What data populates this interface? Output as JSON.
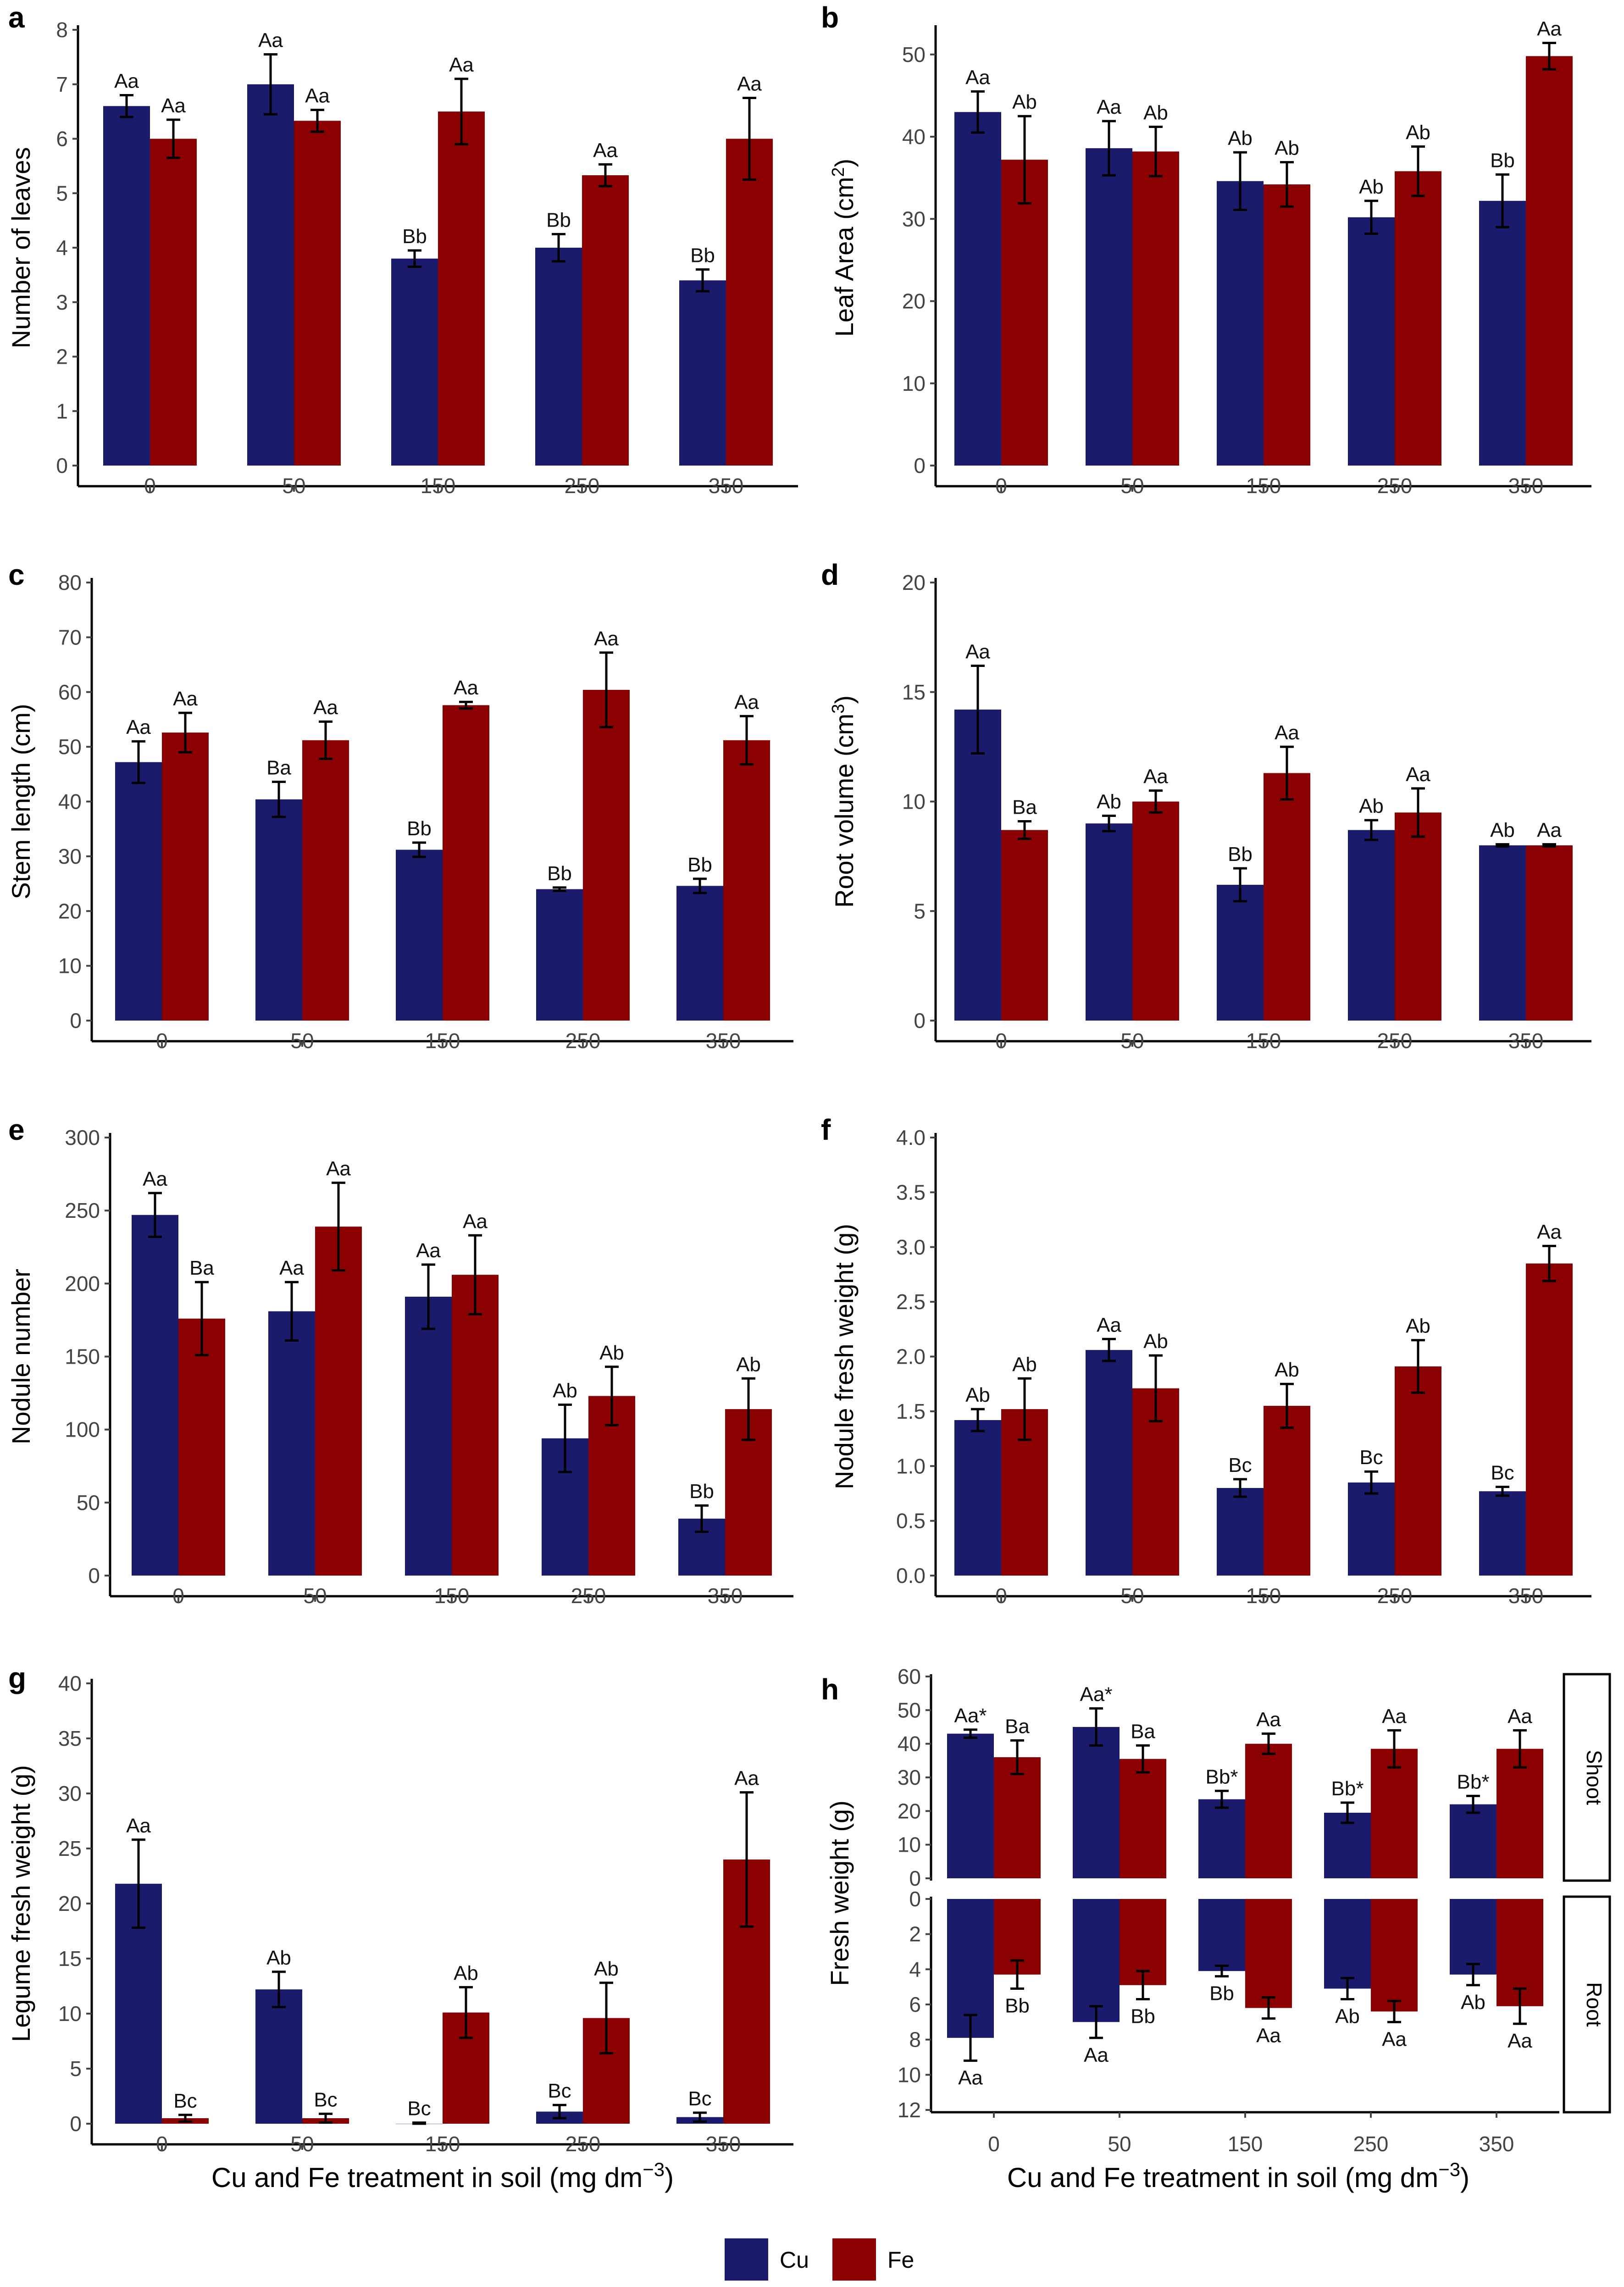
{
  "colors": {
    "Cu": "#1b1b6e",
    "Fe": "#8b0000"
  },
  "legend": {
    "items": [
      {
        "label": "Cu",
        "color": "#1b1b6e"
      },
      {
        "label": "Fe",
        "color": "#8b0000"
      }
    ]
  },
  "xlabel": {
    "text": "Cu and Fe treatment in soil (mg dm",
    "sup": "−3",
    "close": ")"
  },
  "chart_data": [
    {
      "panel": "a",
      "type": "bar",
      "ylabel": "Number of leaves",
      "ylabel_sup": "",
      "ylabel_close": "",
      "categories": [
        "0",
        "50",
        "150",
        "250",
        "350"
      ],
      "ylim": [
        0,
        8
      ],
      "yticks": [
        "0",
        "1",
        "2",
        "3",
        "4",
        "5",
        "6",
        "7",
        "8"
      ],
      "series": [
        {
          "name": "Cu",
          "values": [
            6.6,
            7.0,
            3.8,
            4.0,
            3.4
          ],
          "err": [
            0.2,
            0.55,
            0.15,
            0.25,
            0.2
          ],
          "labels": [
            "Aa",
            "Aa",
            "Bb",
            "Bb",
            "Bb"
          ]
        },
        {
          "name": "Fe",
          "values": [
            6.0,
            6.33,
            6.5,
            5.33,
            6.0
          ],
          "err": [
            0.35,
            0.2,
            0.6,
            0.2,
            0.75
          ],
          "labels": [
            "Aa",
            "Aa",
            "Aa",
            "Aa",
            "Aa"
          ]
        }
      ]
    },
    {
      "panel": "b",
      "type": "bar",
      "ylabel": "Leaf Area (cm",
      "ylabel_sup": "2",
      "ylabel_close": ")",
      "categories": [
        "0",
        "50",
        "150",
        "250",
        "350"
      ],
      "ylim": [
        0,
        53
      ],
      "yticks": [
        "0",
        "10",
        "20",
        "30",
        "40",
        "50"
      ],
      "series": [
        {
          "name": "Cu",
          "values": [
            43.0,
            38.6,
            34.6,
            30.2,
            32.2
          ],
          "err": [
            2.5,
            3.3,
            3.5,
            2.0,
            3.2
          ],
          "labels": [
            "Aa",
            "Aa",
            "Ab",
            "Ab",
            "Bb"
          ]
        },
        {
          "name": "Fe",
          "values": [
            37.2,
            38.2,
            34.2,
            35.8,
            49.8
          ],
          "err": [
            5.3,
            3.0,
            2.7,
            3.0,
            1.6
          ],
          "labels": [
            "Ab",
            "Ab",
            "Ab",
            "Ab",
            "Aa"
          ]
        }
      ]
    },
    {
      "panel": "c",
      "type": "bar",
      "ylabel": "Stem length (cm)",
      "ylabel_sup": "",
      "ylabel_close": "",
      "categories": [
        "0",
        "50",
        "150",
        "250",
        "350"
      ],
      "ylim": [
        0,
        80
      ],
      "yticks": [
        "0",
        "10",
        "20",
        "30",
        "40",
        "50",
        "60",
        "70",
        "80"
      ],
      "series": [
        {
          "name": "Cu",
          "values": [
            47.2,
            40.4,
            31.2,
            24.0,
            24.6
          ],
          "err": [
            3.8,
            3.2,
            1.3,
            0.3,
            1.3
          ],
          "labels": [
            "Aa",
            "Ba",
            "Bb",
            "Bb",
            "Bb"
          ]
        },
        {
          "name": "Fe",
          "values": [
            52.6,
            51.2,
            57.6,
            60.4,
            51.2
          ],
          "err": [
            3.6,
            3.4,
            0.6,
            6.8,
            4.4
          ],
          "labels": [
            "Aa",
            "Aa",
            "Aa",
            "Aa",
            "Aa"
          ]
        }
      ]
    },
    {
      "panel": "d",
      "type": "bar",
      "ylabel": "Root volume (cm",
      "ylabel_sup": "3",
      "ylabel_close": ")",
      "categories": [
        "0",
        "50",
        "150",
        "250",
        "350"
      ],
      "ylim": [
        0,
        20
      ],
      "yticks": [
        "0",
        "5",
        "10",
        "15",
        "20"
      ],
      "series": [
        {
          "name": "Cu",
          "values": [
            14.2,
            9.0,
            6.2,
            8.7,
            8.0
          ],
          "err": [
            2.0,
            0.35,
            0.75,
            0.45,
            0.05
          ],
          "labels": [
            "Aa",
            "Ab",
            "Bb",
            "Ab",
            "Ab"
          ]
        },
        {
          "name": "Fe",
          "values": [
            8.7,
            10.0,
            11.3,
            9.5,
            8.0
          ],
          "err": [
            0.4,
            0.5,
            1.2,
            1.1,
            0.05
          ],
          "labels": [
            "Ba",
            "Aa",
            "Aa",
            "Aa",
            "Aa"
          ]
        }
      ]
    },
    {
      "panel": "e",
      "type": "bar",
      "ylabel": "Nodule number",
      "ylabel_sup": "",
      "ylabel_close": "",
      "categories": [
        "0",
        "50",
        "150",
        "250",
        "350"
      ],
      "ylim": [
        0,
        300
      ],
      "yticks": [
        "0",
        "50",
        "100",
        "150",
        "200",
        "250",
        "300"
      ],
      "series": [
        {
          "name": "Cu",
          "values": [
            247,
            181,
            191,
            94,
            39
          ],
          "err": [
            15,
            20,
            22,
            23,
            9
          ],
          "labels": [
            "Aa",
            "Aa",
            "Aa",
            "Ab",
            "Bb"
          ]
        },
        {
          "name": "Fe",
          "values": [
            176,
            239,
            206,
            123,
            114
          ],
          "err": [
            25,
            30,
            27,
            20,
            21
          ],
          "labels": [
            "Ba",
            "Aa",
            "Aa",
            "Ab",
            "Ab"
          ]
        }
      ]
    },
    {
      "panel": "f",
      "type": "bar",
      "ylabel": "Nodule fresh weight (g)",
      "ylabel_sup": "",
      "ylabel_close": "",
      "categories": [
        "0",
        "50",
        "150",
        "250",
        "350"
      ],
      "ylim": [
        0,
        4
      ],
      "yticks": [
        "0.0",
        "0.5",
        "1.0",
        "1.5",
        "2.0",
        "2.5",
        "3.0",
        "3.5",
        "4.0"
      ],
      "series": [
        {
          "name": "Cu",
          "values": [
            1.42,
            2.06,
            0.8,
            0.85,
            0.77
          ],
          "err": [
            0.1,
            0.1,
            0.08,
            0.1,
            0.04
          ],
          "labels": [
            "Ab",
            "Aa",
            "Bc",
            "Bc",
            "Bc"
          ]
        },
        {
          "name": "Fe",
          "values": [
            1.52,
            1.71,
            1.55,
            1.91,
            2.85
          ],
          "err": [
            0.28,
            0.3,
            0.2,
            0.24,
            0.16
          ],
          "labels": [
            "Ab",
            "Ab",
            "Ab",
            "Ab",
            "Aa"
          ]
        }
      ]
    },
    {
      "panel": "g",
      "type": "bar",
      "ylabel": "Legume fresh weight (g)",
      "ylabel_sup": "",
      "ylabel_close": "",
      "categories": [
        "0",
        "50",
        "150",
        "250",
        "350"
      ],
      "ylim": [
        0,
        40
      ],
      "yticks": [
        "0",
        "5",
        "10",
        "15",
        "20",
        "25",
        "30",
        "35",
        "40"
      ],
      "series": [
        {
          "name": "Cu",
          "values": [
            21.8,
            12.2,
            0.0,
            1.1,
            0.6
          ],
          "err": [
            4.0,
            1.6,
            0.1,
            0.6,
            0.4
          ],
          "labels": [
            "Aa",
            "Ab",
            "Bc",
            "Bc",
            "Bc"
          ]
        },
        {
          "name": "Fe",
          "values": [
            0.5,
            0.5,
            10.1,
            9.6,
            24.0
          ],
          "err": [
            0.3,
            0.4,
            2.3,
            3.2,
            6.1
          ],
          "labels": [
            "Bc",
            "Bc",
            "Ab",
            "Ab",
            "Aa"
          ]
        }
      ]
    },
    {
      "panel": "h",
      "type": "bar",
      "ylabel": "Fresh weight (g)",
      "ylabel_sup": "",
      "ylabel_close": "",
      "categories": [
        "0",
        "50",
        "150",
        "250",
        "350"
      ],
      "facets": [
        {
          "name": "Shoot",
          "direction": "up",
          "ylim": [
            0,
            60
          ],
          "yticks": [
            "0",
            "10",
            "20",
            "30",
            "40",
            "50",
            "60"
          ],
          "series": [
            {
              "name": "Cu",
              "values": [
                43.0,
                45.0,
                23.5,
                19.5,
                22.0
              ],
              "err": [
                1.2,
                5.5,
                2.5,
                3.0,
                2.5
              ],
              "labels": [
                "Aa*",
                "Aa*",
                "Bb*",
                "Bb*",
                "Bb*"
              ]
            },
            {
              "name": "Fe",
              "values": [
                36.0,
                35.5,
                40.0,
                38.5,
                38.5
              ],
              "err": [
                5.0,
                4.0,
                3.0,
                5.5,
                5.5
              ],
              "labels": [
                "Ba",
                "Ba",
                "Aa",
                "Aa",
                "Aa"
              ]
            }
          ]
        },
        {
          "name": "Root",
          "direction": "down",
          "ylim": [
            0,
            12
          ],
          "yticks": [
            "0",
            "2",
            "4",
            "6",
            "8",
            "10",
            "12"
          ],
          "series": [
            {
              "name": "Cu",
              "values": [
                7.9,
                7.0,
                4.1,
                5.1,
                4.3
              ],
              "err": [
                1.3,
                0.9,
                0.3,
                0.6,
                0.6
              ],
              "labels": [
                "Aa",
                "Aa",
                "Bb",
                "Ab",
                "Ab"
              ]
            },
            {
              "name": "Fe",
              "values": [
                4.3,
                4.9,
                6.2,
                6.4,
                6.1
              ],
              "err": [
                0.8,
                0.8,
                0.6,
                0.6,
                1.0
              ],
              "labels": [
                "Bb",
                "Bb",
                "Aa",
                "Aa",
                "Aa"
              ]
            }
          ]
        }
      ]
    }
  ]
}
